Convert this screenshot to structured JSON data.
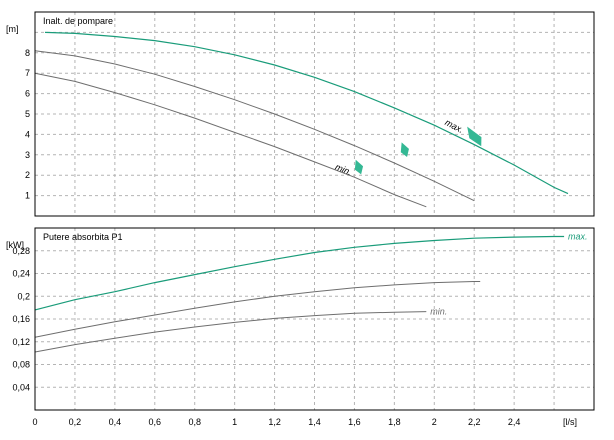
{
  "colors": {
    "max": "#1a9c7a",
    "min": "#6e6e6e",
    "grid": "#b4b4b4",
    "frame": "#000000",
    "marker": "#34b894"
  },
  "chart_data": [
    {
      "type": "line",
      "title": "Inalt. de pompare",
      "ylabel": "[m]",
      "xlabel": "",
      "xlim": [
        0,
        2.8
      ],
      "ylim": [
        0,
        10
      ],
      "grid": true,
      "yticks": [
        "1",
        "2",
        "3",
        "4",
        "5",
        "6",
        "7",
        "8"
      ],
      "series": [
        {
          "name": "max.",
          "style": "max",
          "x": [
            0.05,
            0.2,
            0.4,
            0.6,
            0.8,
            1.0,
            1.2,
            1.4,
            1.6,
            1.8,
            2.0,
            2.2,
            2.4,
            2.6,
            2.67
          ],
          "y": [
            9.0,
            8.95,
            8.8,
            8.6,
            8.3,
            7.9,
            7.4,
            6.8,
            6.1,
            5.3,
            4.45,
            3.5,
            2.5,
            1.4,
            1.1
          ]
        },
        {
          "name": "",
          "style": "min",
          "x": [
            0.0,
            0.2,
            0.4,
            0.6,
            0.8,
            1.0,
            1.2,
            1.4,
            1.6,
            1.8,
            2.0,
            2.2
          ],
          "y": [
            8.1,
            7.85,
            7.45,
            6.95,
            6.35,
            5.7,
            5.0,
            4.25,
            3.45,
            2.6,
            1.7,
            0.75
          ]
        },
        {
          "name": "min.",
          "style": "min",
          "x": [
            0.0,
            0.2,
            0.4,
            0.6,
            0.8,
            1.0,
            1.2,
            1.4,
            1.6,
            1.8,
            1.96
          ],
          "y": [
            7.0,
            6.6,
            6.05,
            5.45,
            4.8,
            4.1,
            3.4,
            2.65,
            1.9,
            1.05,
            0.45
          ]
        }
      ],
      "markers": [
        {
          "x": 1.62,
          "y": 2.4
        },
        {
          "x": 1.85,
          "y": 3.25
        },
        {
          "x": 2.2,
          "y": 3.9
        }
      ]
    },
    {
      "type": "line",
      "title": "Putere absorbita P1",
      "ylabel": "[kW]",
      "xlabel": "[l/s]",
      "xlim": [
        0,
        2.8
      ],
      "ylim": [
        0,
        0.32
      ],
      "grid": true,
      "xticks": [
        "0",
        "0,2",
        "0,4",
        "0,6",
        "0,8",
        "1",
        "1,2",
        "1,4",
        "1,6",
        "1,8",
        "2",
        "2,2",
        "2,4"
      ],
      "yticks": [
        "0,04",
        "0,08",
        "0,12",
        "0,16",
        "0,2",
        "0,24",
        "0,28"
      ],
      "series": [
        {
          "name": "max.",
          "style": "max",
          "x": [
            0.0,
            0.2,
            0.4,
            0.6,
            0.8,
            1.0,
            1.2,
            1.4,
            1.6,
            1.8,
            2.0,
            2.2,
            2.4,
            2.6,
            2.65
          ],
          "y": [
            0.176,
            0.194,
            0.208,
            0.224,
            0.238,
            0.252,
            0.265,
            0.277,
            0.286,
            0.293,
            0.298,
            0.302,
            0.304,
            0.305,
            0.305
          ]
        },
        {
          "name": "",
          "style": "min",
          "x": [
            0.0,
            0.2,
            0.4,
            0.6,
            0.8,
            1.0,
            1.2,
            1.4,
            1.6,
            1.8,
            2.0,
            2.2,
            2.23
          ],
          "y": [
            0.128,
            0.142,
            0.155,
            0.167,
            0.179,
            0.19,
            0.2,
            0.208,
            0.215,
            0.22,
            0.224,
            0.226,
            0.226
          ]
        },
        {
          "name": "min.",
          "style": "min",
          "x": [
            0.0,
            0.2,
            0.4,
            0.6,
            0.8,
            1.0,
            1.2,
            1.4,
            1.6,
            1.8,
            1.96
          ],
          "y": [
            0.102,
            0.115,
            0.126,
            0.137,
            0.146,
            0.154,
            0.161,
            0.166,
            0.17,
            0.172,
            0.173
          ]
        }
      ]
    }
  ]
}
